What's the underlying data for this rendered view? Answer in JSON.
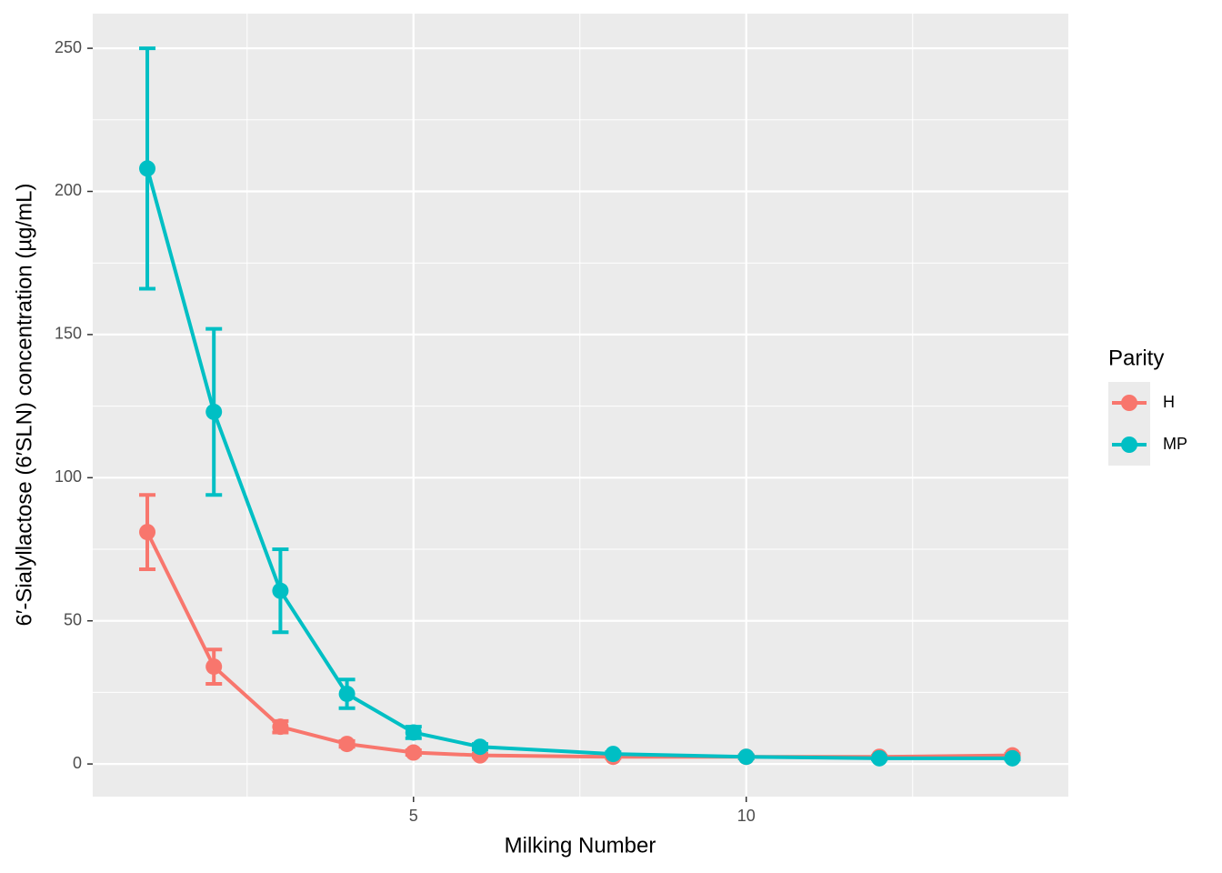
{
  "chart_data": {
    "type": "line",
    "x_label": "Milking Number",
    "y_label": "6′-Sialyllactose (6′SLN) concentration (µg/mL)",
    "legend_title": "Parity",
    "legend_position": "right",
    "x": [
      1,
      2,
      3,
      4,
      5,
      6,
      8,
      10,
      12,
      14
    ],
    "series": [
      {
        "name": "H",
        "color": "#F8766D",
        "values": [
          81,
          34,
          13,
          7,
          4,
          3,
          2.5,
          2.5,
          2.5,
          3
        ],
        "errors": [
          13,
          6,
          2,
          1,
          0.8,
          0.5,
          0.4,
          0.4,
          0.4,
          0.5
        ]
      },
      {
        "name": "MP",
        "color": "#00BFC4",
        "values": [
          208,
          123,
          60.5,
          24.5,
          11,
          6,
          3.5,
          2.5,
          2,
          2
        ],
        "errors": [
          42,
          29,
          14.5,
          5,
          2,
          1,
          0.6,
          0.5,
          0.4,
          0.4
        ]
      }
    ],
    "xlim": [
      0.18,
      14.84
    ],
    "xticks": [
      5,
      10
    ],
    "ylim": [
      -11.4,
      262.1
    ],
    "yticks": [
      0,
      50,
      100,
      150,
      200,
      250
    ],
    "grid": true
  }
}
